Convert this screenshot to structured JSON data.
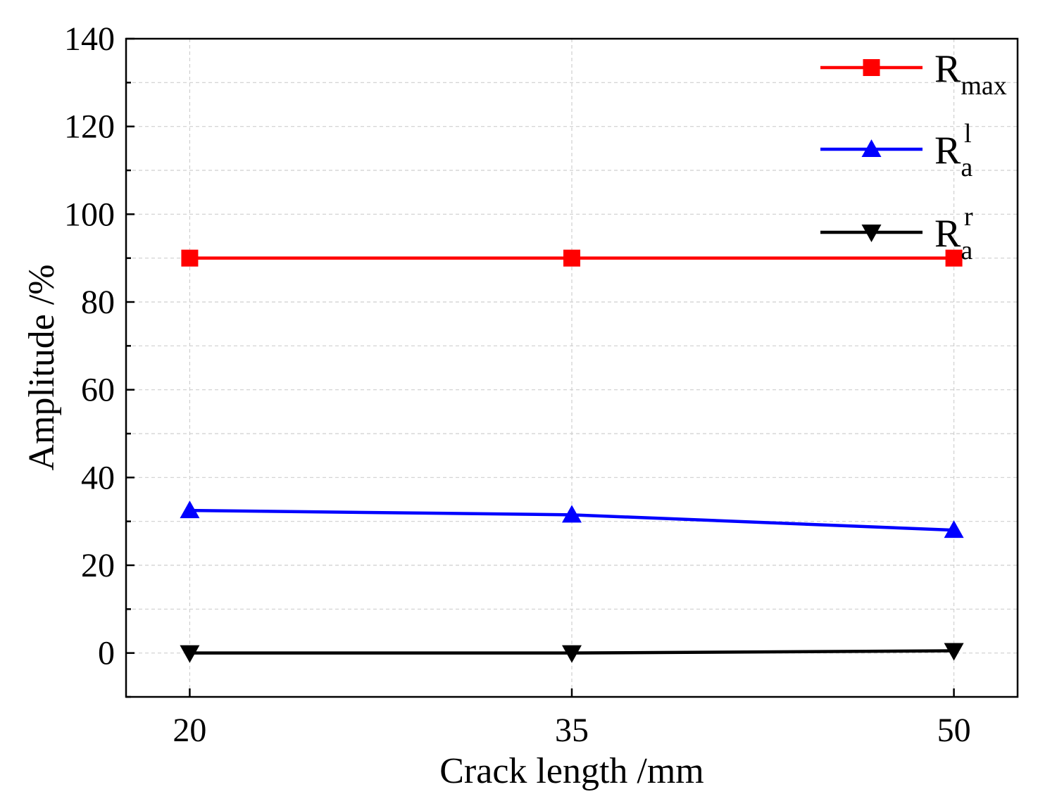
{
  "chart_data": {
    "type": "line",
    "title": "",
    "xlabel": "Crack length /mm",
    "ylabel": "Amplitude /%",
    "x": [
      20,
      35,
      50
    ],
    "x_tick_labels": [
      "20",
      "35",
      "50"
    ],
    "xlim": [
      17.5,
      52.5
    ],
    "ylim": [
      -10,
      140
    ],
    "y_ticks": [
      0,
      20,
      40,
      60,
      80,
      100,
      120,
      140
    ],
    "y_tick_labels": [
      "0",
      "20",
      "40",
      "60",
      "80",
      "100",
      "120",
      "140"
    ],
    "grid": true,
    "legend_position": "top-right",
    "series": [
      {
        "name": "R_max",
        "legend_main": "R",
        "legend_sub": "max",
        "legend_sup": "",
        "color": "#ff0000",
        "marker": "square",
        "values": [
          90,
          90,
          90
        ]
      },
      {
        "name": "R_a^l",
        "legend_main": "R",
        "legend_sub": "a",
        "legend_sup": "l",
        "color": "#0000ff",
        "marker": "triangle-up",
        "values": [
          32.5,
          31.5,
          28
        ]
      },
      {
        "name": "R_a^r",
        "legend_main": "R",
        "legend_sub": "a",
        "legend_sup": "r",
        "color": "#000000",
        "marker": "triangle-down",
        "values": [
          0,
          0,
          0.5
        ]
      }
    ]
  }
}
